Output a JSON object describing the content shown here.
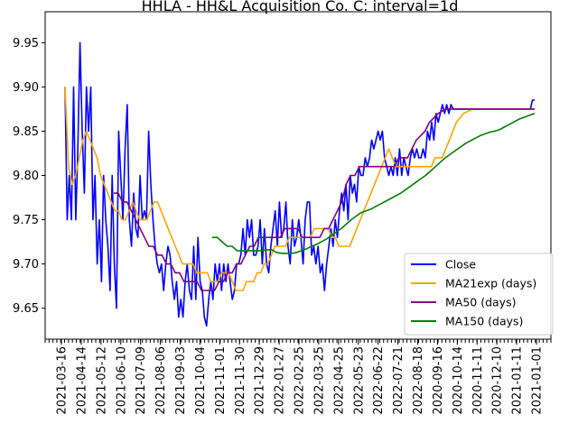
{
  "chart_data": {
    "type": "line",
    "title": "HHLA - HH&L Acquisition Co. C: interval=1d",
    "xlabel": "",
    "ylabel": "",
    "ylim": [
      9.615,
      9.985
    ],
    "y_ticks": [
      "9.65",
      "9.70",
      "9.75",
      "9.80",
      "9.85",
      "9.90",
      "9.95"
    ],
    "x_ticks": [
      "2021-03-16",
      "2021-04-14",
      "2021-05-12",
      "2021-06-10",
      "2021-07-09",
      "2021-08-06",
      "2021-09-03",
      "2021-10-04",
      "2021-11-01",
      "2021-11-30",
      "2021-12-29",
      "2022-01-27",
      "2022-02-25",
      "2022-03-25",
      "2022-04-25",
      "2022-05-23",
      "2022-06-22",
      "2022-07-21",
      "2022-08-18",
      "2020-09-16",
      "2020-10-14",
      "2020-11-11",
      "2020-12-10",
      "2021-01-11",
      "2021-01-01"
    ],
    "grid": false,
    "legend_position": "lower-right",
    "series": [
      {
        "name": "Close",
        "color": "#0000ff",
        "values": [
          9.9,
          9.75,
          9.8,
          9.75,
          9.9,
          9.75,
          9.83,
          9.95,
          9.85,
          9.78,
          9.9,
          9.85,
          9.9,
          9.75,
          9.8,
          9.7,
          9.75,
          9.68,
          9.8,
          9.75,
          9.72,
          9.67,
          9.8,
          9.7,
          9.65,
          9.85,
          9.8,
          9.75,
          9.83,
          9.88,
          9.75,
          9.72,
          9.78,
          9.74,
          9.73,
          9.8,
          9.75,
          9.76,
          9.75,
          9.85,
          9.79,
          9.75,
          9.72,
          9.7,
          9.69,
          9.7,
          9.67,
          9.7,
          9.72,
          9.71,
          9.68,
          9.66,
          9.68,
          9.64,
          9.66,
          9.64,
          9.68,
          9.7,
          9.67,
          9.66,
          9.72,
          9.66,
          9.73,
          9.68,
          9.67,
          9.64,
          9.63,
          9.66,
          9.68,
          9.66,
          9.7,
          9.68,
          9.7,
          9.67,
          9.7,
          9.68,
          9.7,
          9.68,
          9.66,
          9.67,
          9.7,
          9.7,
          9.71,
          9.74,
          9.71,
          9.75,
          9.73,
          9.75,
          9.71,
          9.71,
          9.72,
          9.75,
          9.7,
          9.74,
          9.7,
          9.69,
          9.72,
          9.74,
          9.76,
          9.72,
          9.77,
          9.73,
          9.74,
          9.77,
          9.72,
          9.7,
          9.75,
          9.72,
          9.73,
          9.75,
          9.73,
          9.7,
          9.75,
          9.77,
          9.77,
          9.71,
          9.72,
          9.7,
          9.72,
          9.69,
          9.7,
          9.67,
          9.7,
          9.72,
          9.74,
          9.72,
          9.75,
          9.73,
          9.76,
          9.78,
          9.76,
          9.79,
          9.75,
          9.8,
          9.78,
          9.79,
          9.77,
          9.81,
          9.8,
          9.8,
          9.82,
          9.81,
          9.82,
          9.84,
          9.83,
          9.84,
          9.85,
          9.84,
          9.85,
          9.82,
          9.81,
          9.8,
          9.81,
          9.8,
          9.82,
          9.8,
          9.83,
          9.8,
          9.82,
          9.81,
          9.8,
          9.82,
          9.83,
          9.82,
          9.83,
          9.82,
          9.82,
          9.83,
          9.82,
          9.85,
          9.84,
          9.86,
          9.84,
          9.87,
          9.86,
          9.87,
          9.88,
          9.87,
          9.88,
          9.87,
          9.88,
          9.875,
          9.875,
          9.875,
          9.875,
          9.875,
          9.875,
          9.875,
          9.875,
          9.875,
          9.875,
          9.875,
          9.875,
          9.875,
          9.875,
          9.875,
          9.875,
          9.875,
          9.875,
          9.875,
          9.875,
          9.875,
          9.875,
          9.875,
          9.875,
          9.875,
          9.875,
          9.875,
          9.875,
          9.875,
          9.875,
          9.875,
          9.875,
          9.875,
          9.875,
          9.875,
          9.875,
          9.875,
          9.885,
          9.885
        ]
      },
      {
        "name": "MA21exp (days)",
        "color": "#ffa500",
        "values": [
          9.9,
          9.81,
          9.79,
          9.8,
          9.82,
          9.84,
          9.85,
          9.84,
          9.83,
          9.82,
          9.8,
          9.79,
          9.78,
          9.77,
          9.76,
          9.76,
          9.75,
          9.75,
          9.76,
          9.77,
          9.76,
          9.75,
          9.75,
          9.75,
          9.76,
          9.77,
          9.77,
          9.76,
          9.75,
          9.74,
          9.73,
          9.72,
          9.71,
          9.7,
          9.7,
          9.7,
          9.7,
          9.69,
          9.69,
          9.69,
          9.69,
          9.68,
          9.68,
          9.68,
          9.69,
          9.69,
          9.69,
          9.68,
          9.67,
          9.67,
          9.67,
          9.68,
          9.68,
          9.68,
          9.69,
          9.69,
          9.7,
          9.7,
          9.71,
          9.72,
          9.72,
          9.72,
          9.72,
          9.73,
          9.73,
          9.73,
          9.73,
          9.73,
          9.73,
          9.73,
          9.74,
          9.74,
          9.74,
          9.74,
          9.74,
          9.73,
          9.73,
          9.72,
          9.72,
          9.72,
          9.72,
          9.73,
          9.74,
          9.75,
          9.76,
          9.77,
          9.78,
          9.79,
          9.8,
          9.81,
          9.82,
          9.83,
          9.82,
          9.81,
          9.81,
          9.81,
          9.81,
          9.81,
          9.81,
          9.81,
          9.81,
          9.81,
          9.81,
          9.81,
          9.82,
          9.82,
          9.82,
          9.83,
          9.84,
          9.85,
          9.86,
          9.865,
          9.87,
          9.872,
          9.874,
          9.875,
          9.875,
          9.875,
          9.875,
          9.875,
          9.875,
          9.875,
          9.875,
          9.875,
          9.875,
          9.875,
          9.875,
          9.875,
          9.875,
          9.875,
          9.875,
          9.875,
          9.875
        ]
      },
      {
        "name": "MA50 (days)",
        "color": "#800080",
        "values": [
          9.78,
          9.78,
          9.77,
          9.77,
          9.76,
          9.75,
          9.74,
          9.73,
          9.72,
          9.72,
          9.71,
          9.71,
          9.7,
          9.7,
          9.69,
          9.69,
          9.68,
          9.68,
          9.68,
          9.68,
          9.67,
          9.67,
          9.67,
          9.67,
          9.68,
          9.68,
          9.69,
          9.69,
          9.7,
          9.7,
          9.71,
          9.72,
          9.72,
          9.73,
          9.73,
          9.73,
          9.73,
          9.73,
          9.73,
          9.74,
          9.74,
          9.74,
          9.74,
          9.73,
          9.73,
          9.73,
          9.73,
          9.73,
          9.74,
          9.74,
          9.75,
          9.76,
          9.77,
          9.79,
          9.8,
          9.8,
          9.81,
          9.81,
          9.81,
          9.81,
          9.81,
          9.81,
          9.81,
          9.81,
          9.81,
          9.82,
          9.82,
          9.82,
          9.83,
          9.84,
          9.845,
          9.85,
          9.86,
          9.865,
          9.87,
          9.873,
          9.875,
          9.875,
          9.875,
          9.875,
          9.875,
          9.875,
          9.875,
          9.875,
          9.875,
          9.875,
          9.875,
          9.875,
          9.875,
          9.875,
          9.875,
          9.875,
          9.875,
          9.875,
          9.875,
          9.875,
          9.875
        ]
      },
      {
        "name": "MA150 (days)",
        "color": "#008000",
        "values": [
          9.73,
          9.73,
          9.725,
          9.72,
          9.72,
          9.715,
          9.715,
          9.715,
          9.715,
          9.715,
          9.715,
          9.716,
          9.716,
          9.713,
          9.712,
          9.712,
          9.712,
          9.713,
          9.715,
          9.717,
          9.72,
          9.722,
          9.725,
          9.728,
          9.732,
          9.736,
          9.74,
          9.745,
          9.75,
          9.754,
          9.758,
          9.76,
          9.762,
          9.765,
          9.768,
          9.771,
          9.774,
          9.777,
          9.78,
          9.784,
          9.788,
          9.792,
          9.796,
          9.8,
          9.805,
          9.81,
          9.815,
          9.82,
          9.824,
          9.828,
          9.832,
          9.836,
          9.839,
          9.842,
          9.845,
          9.847,
          9.849,
          9.85,
          9.852,
          9.855,
          9.858,
          9.861,
          9.864,
          9.866,
          9.868,
          9.87
        ]
      }
    ]
  }
}
